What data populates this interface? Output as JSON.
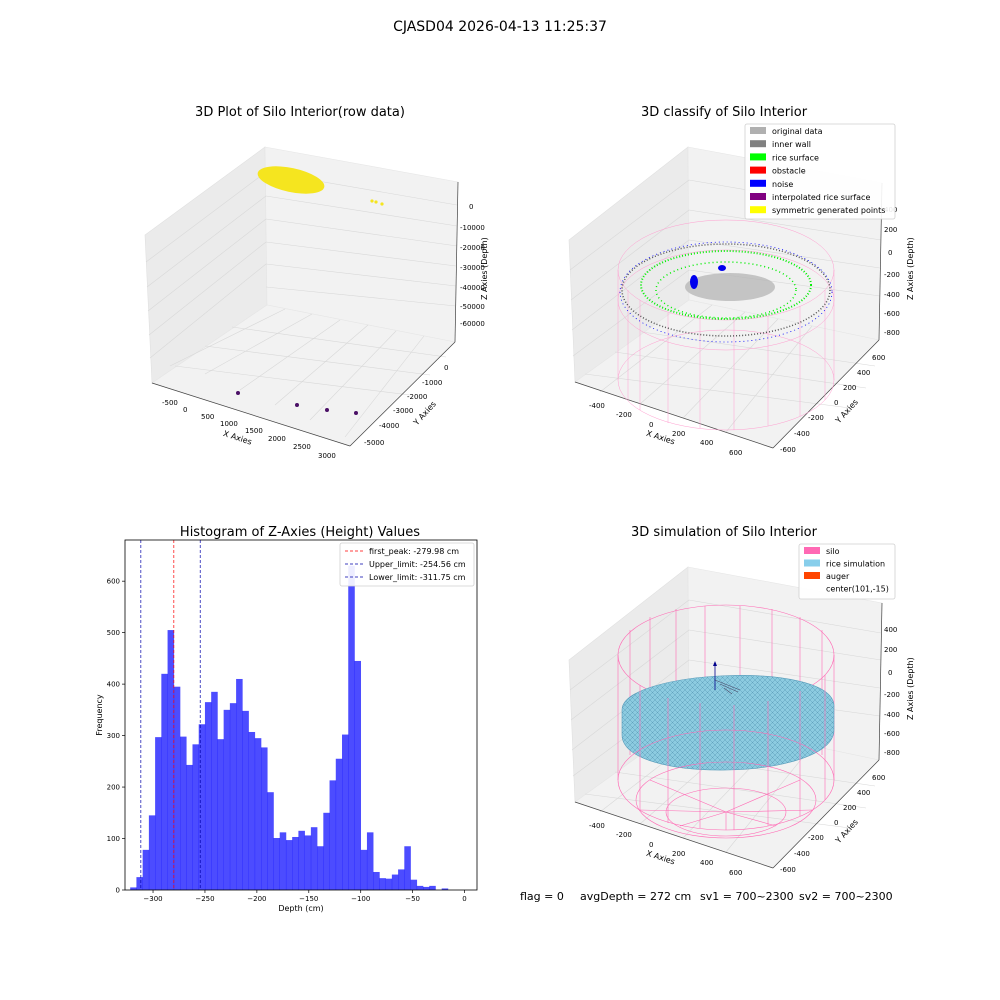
{
  "figure": {
    "suptitle": "CJASD04 2026-04-13 11:25:37",
    "footer": {
      "flag": "flag = 0",
      "avg_depth": "avgDepth = 272 cm",
      "sv1": "sv1 = 700~2300",
      "sv2": "sv2 = 700~2300"
    }
  },
  "chart_data": [
    {
      "type": "scatter3d",
      "title": "3D Plot of Silo Interior(row data)",
      "xlabel": "X Axies",
      "ylabel": "Y Axies",
      "zlabel": "Z Axies (Depth)",
      "xticks": [
        "-500",
        "0",
        "500",
        "1000",
        "1500",
        "2000",
        "2500",
        "3000"
      ],
      "yticks": [
        "0",
        "-1000",
        "-2000",
        "-3000",
        "-4000",
        "-5000"
      ],
      "zticks": [
        "0",
        "-10000",
        "-20000",
        "-30000",
        "-40000",
        "-50000",
        "-60000"
      ],
      "colors": {
        "main": "#f5e51f",
        "outliers": "#4b1066"
      }
    },
    {
      "type": "scatter3d",
      "title": "3D classify of Silo Interior",
      "xlabel": "X Axies",
      "ylabel": "Y Axies",
      "zlabel": "Z Axies (Depth)",
      "xticks": [
        "-400",
        "-200",
        "0",
        "200",
        "400",
        "600"
      ],
      "yticks": [
        "600",
        "400",
        "200",
        "0",
        "-200",
        "-400",
        "-600"
      ],
      "zticks": [
        "400",
        "200",
        "0",
        "-200",
        "-400",
        "-600",
        "-800"
      ],
      "legend": [
        {
          "label": "original data",
          "color": "#b0b0b0"
        },
        {
          "label": "inner wall",
          "color": "#808080"
        },
        {
          "label": "rice surface",
          "color": "#00ff00"
        },
        {
          "label": "obstacle",
          "color": "#ff0000"
        },
        {
          "label": "noise",
          "color": "#0000ff"
        },
        {
          "label": "interpolated rice surface",
          "color": "#800080"
        },
        {
          "label": "symmetric generated points",
          "color": "#ffff00"
        }
      ],
      "legend_position": "top-right"
    },
    {
      "type": "bar",
      "title": "Histogram of Z-Axies (Height) Values",
      "xlabel": "Depth (cm)",
      "ylabel": "Frequency",
      "xlim": [
        -327,
        12
      ],
      "ylim": [
        0,
        680
      ],
      "xticks": [
        -300,
        -250,
        -200,
        -150,
        -100,
        -50,
        0
      ],
      "xtick_labels": [
        "−300",
        "−250",
        "−200",
        "−150",
        "−100",
        "−50",
        "0"
      ],
      "yticks": [
        0,
        100,
        200,
        300,
        400,
        500,
        600
      ],
      "bin_start": -322,
      "bin_width": 6,
      "values": [
        5,
        25,
        78,
        145,
        297,
        420,
        505,
        395,
        298,
        243,
        283,
        322,
        365,
        385,
        293,
        350,
        363,
        410,
        348,
        307,
        295,
        277,
        190,
        101,
        112,
        97,
        103,
        115,
        106,
        122,
        85,
        150,
        213,
        255,
        302,
        630,
        445,
        78,
        112,
        35,
        23,
        22,
        30,
        40,
        85,
        20,
        8,
        6,
        8,
        0,
        3
      ],
      "color": "#0000ff",
      "lines": [
        {
          "label": "first_peak: -279.98 cm",
          "x": -279.98,
          "color": "#ff0000"
        },
        {
          "label": "Upper_limit: -254.56 cm",
          "x": -254.56,
          "color": "#0000aa"
        },
        {
          "label": "Lower_limit: -311.75 cm",
          "x": -311.75,
          "color": "#0000aa"
        }
      ],
      "legend_position": "top-right"
    },
    {
      "type": "surface3d",
      "title": "3D simulation of Silo Interior",
      "xlabel": "X Axies",
      "ylabel": "Y Axies",
      "zlabel": "Z Axies (Depth)",
      "xticks": [
        "-400",
        "-200",
        "0",
        "200",
        "400",
        "600"
      ],
      "yticks": [
        "600",
        "400",
        "200",
        "0",
        "-200",
        "-400",
        "-600"
      ],
      "zticks": [
        "400",
        "200",
        "0",
        "-200",
        "-400",
        "-600",
        "-800"
      ],
      "legend": [
        {
          "label": "silo",
          "color": "#ff69b4"
        },
        {
          "label": "rice simulation",
          "color": "#87ceeb"
        },
        {
          "label": "auger",
          "color": "#ff4500"
        },
        {
          "label": "center(101,-15)",
          "color": ""
        }
      ],
      "legend_position": "top-right"
    }
  ]
}
